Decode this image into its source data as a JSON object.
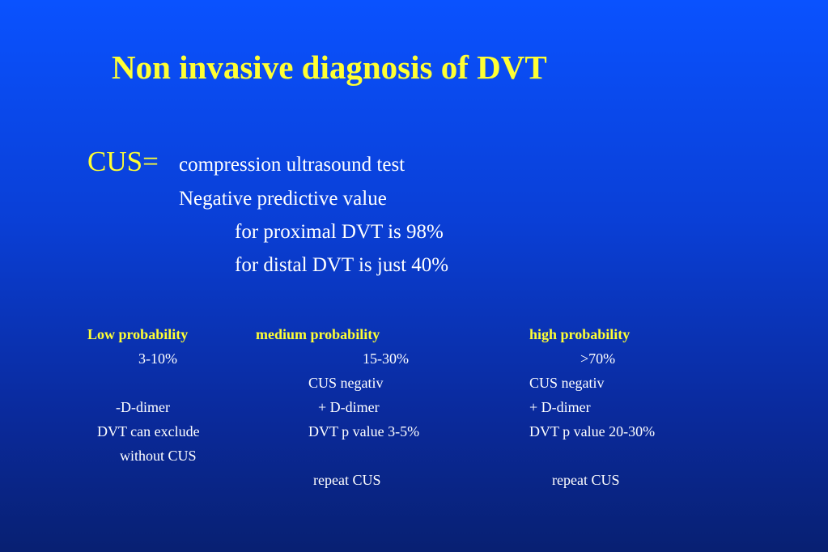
{
  "title": "Non invasive diagnosis of DVT",
  "cus": {
    "label": "CUS=",
    "definition": "compression ultrasound test",
    "npv_label": "Negative predictive value",
    "proximal": "for proximal DVT is 98%",
    "distal": "for distal DVT is just  40%"
  },
  "columns": [
    {
      "header": "Low probability",
      "range": "3-10%",
      "d_dimer": "-D-dimer",
      "outcome": "DVT can exclude",
      "outcome2": "without CUS"
    },
    {
      "header": "medium probability",
      "range": "15-30%",
      "cus": "CUS negativ",
      "d_dimer": "+ D-dimer",
      "outcome": "DVT p value 3-5%",
      "action": "repeat CUS"
    },
    {
      "header": "high probability",
      "range": ">70%",
      "cus": "CUS negativ",
      "d_dimer": "+ D-dimer",
      "outcome": "DVT p value 20-30%",
      "action": "repeat CUS"
    }
  ],
  "colors": {
    "background_top": "#0a52ff",
    "background_bottom": "#082072",
    "heading": "#ffff33",
    "body_text": "#ffffff"
  }
}
